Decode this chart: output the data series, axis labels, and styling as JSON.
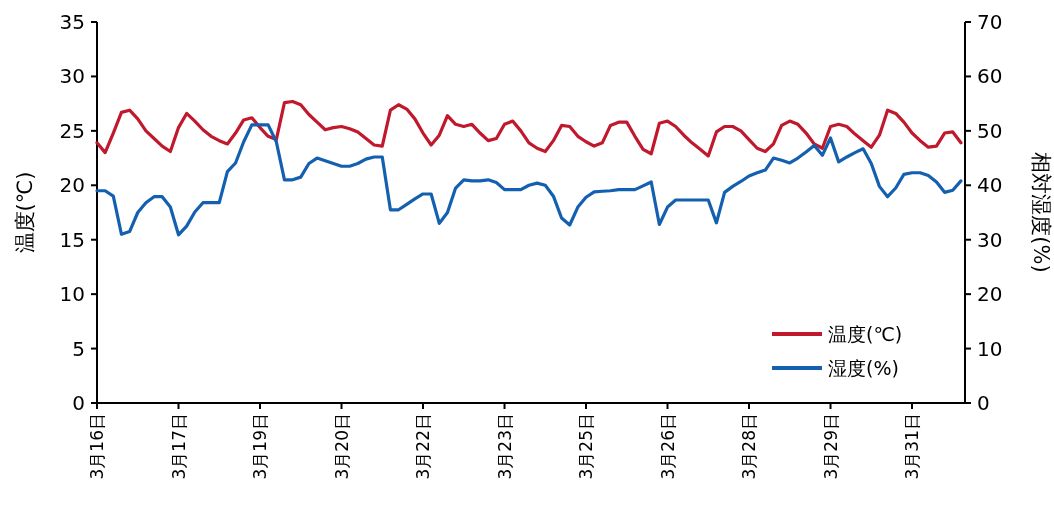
{
  "chart_data": {
    "type": "line",
    "ylabel": "温度(℃)",
    "y2label": "相対湿度(%)",
    "categories": [
      "3月16日",
      null,
      null,
      null,
      null,
      null,
      null,
      null,
      null,
      null,
      "3月17日",
      null,
      null,
      null,
      null,
      null,
      null,
      null,
      null,
      null,
      "3月19日",
      null,
      null,
      null,
      null,
      null,
      null,
      null,
      null,
      null,
      "3月20日",
      null,
      null,
      null,
      null,
      null,
      null,
      null,
      null,
      null,
      "3月22日",
      null,
      null,
      null,
      null,
      null,
      null,
      null,
      null,
      null,
      "3月23日",
      null,
      null,
      null,
      null,
      null,
      null,
      null,
      null,
      null,
      "3月25日",
      null,
      null,
      null,
      null,
      null,
      null,
      null,
      null,
      null,
      "3月26日",
      null,
      null,
      null,
      null,
      null,
      null,
      null,
      null,
      null,
      "3月28日",
      null,
      null,
      null,
      null,
      null,
      null,
      null,
      null,
      null,
      "3月29日",
      null,
      null,
      null,
      null,
      null,
      null,
      null,
      null,
      null,
      "3月31日",
      null,
      null,
      null,
      null,
      null,
      null
    ],
    "ylim": [
      0,
      35
    ],
    "yticks": [
      0,
      5,
      10,
      15,
      20,
      25,
      30,
      35
    ],
    "y2lim": [
      0,
      70
    ],
    "y2ticks": [
      0,
      10,
      20,
      30,
      40,
      50,
      60,
      70
    ],
    "grid": false,
    "legend": "bottom right",
    "marker": "none",
    "line_style": "solid",
    "series": [
      {
        "name": "温度(℃)",
        "color": "#c0182c",
        "values": [
          23.9,
          23.0,
          24.8,
          26.7,
          26.9,
          26.1,
          25.0,
          24.3,
          23.6,
          23.1,
          25.3,
          26.6,
          25.9,
          25.1,
          24.5,
          24.1,
          23.8,
          24.8,
          26.0,
          26.2,
          25.3,
          24.5,
          24.2,
          27.6,
          27.7,
          27.4,
          26.5,
          25.8,
          25.1,
          25.3,
          25.4,
          25.2,
          24.9,
          24.3,
          23.7,
          23.6,
          26.9,
          27.4,
          27.0,
          26.1,
          24.8,
          23.7,
          24.6,
          26.4,
          25.6,
          25.4,
          25.6,
          24.8,
          24.1,
          24.3,
          25.6,
          25.9,
          25.0,
          23.9,
          23.4,
          23.1,
          24.1,
          25.5,
          25.4,
          24.5,
          24.0,
          23.6,
          23.9,
          25.5,
          25.8,
          25.8,
          24.5,
          23.3,
          22.9,
          25.7,
          25.9,
          25.4,
          24.6,
          23.9,
          23.3,
          22.7,
          24.9,
          25.4,
          25.4,
          25.0,
          24.2,
          23.4,
          23.1,
          23.8,
          25.5,
          25.9,
          25.6,
          24.8,
          23.8,
          23.4,
          25.4,
          25.6,
          25.4,
          24.7,
          24.1,
          23.5,
          24.6,
          26.9,
          26.6,
          25.8,
          24.8,
          24.1,
          23.5,
          23.6,
          24.8,
          24.9,
          23.9
        ]
      },
      {
        "name": "湿度(%)",
        "color": "#1460b0",
        "axis": "y2",
        "values": [
          39.0,
          39.0,
          38.0,
          31.0,
          31.5,
          35.0,
          36.8,
          37.9,
          37.9,
          36.0,
          30.9,
          32.5,
          35.1,
          36.8,
          36.8,
          36.8,
          42.5,
          44.1,
          48.0,
          51.1,
          51.1,
          51.1,
          48.0,
          41.0,
          41.0,
          41.5,
          44.0,
          45.0,
          44.5,
          44.0,
          43.5,
          43.5,
          44.0,
          44.8,
          45.2,
          45.2,
          35.5,
          35.5,
          36.5,
          37.5,
          38.4,
          38.4,
          33.0,
          35.0,
          39.5,
          41.0,
          40.8,
          40.8,
          41.0,
          40.5,
          39.2,
          39.2,
          39.2,
          40.0,
          40.4,
          40.0,
          38.0,
          34.0,
          32.7,
          36.0,
          37.8,
          38.8,
          38.9,
          39.0,
          39.2,
          39.2,
          39.2,
          39.9,
          40.6,
          32.8,
          36.0,
          37.3,
          37.3,
          37.3,
          37.3,
          37.3,
          33.1,
          38.7,
          39.8,
          40.7,
          41.7,
          42.3,
          42.8,
          45.0,
          44.6,
          44.1,
          45.0,
          46.1,
          47.3,
          45.5,
          48.7,
          44.3,
          45.2,
          46.0,
          46.7,
          44.0,
          39.8,
          37.9,
          39.5,
          42.0,
          42.3,
          42.3,
          41.8,
          40.6,
          38.7,
          39.1,
          40.8
        ]
      }
    ]
  }
}
